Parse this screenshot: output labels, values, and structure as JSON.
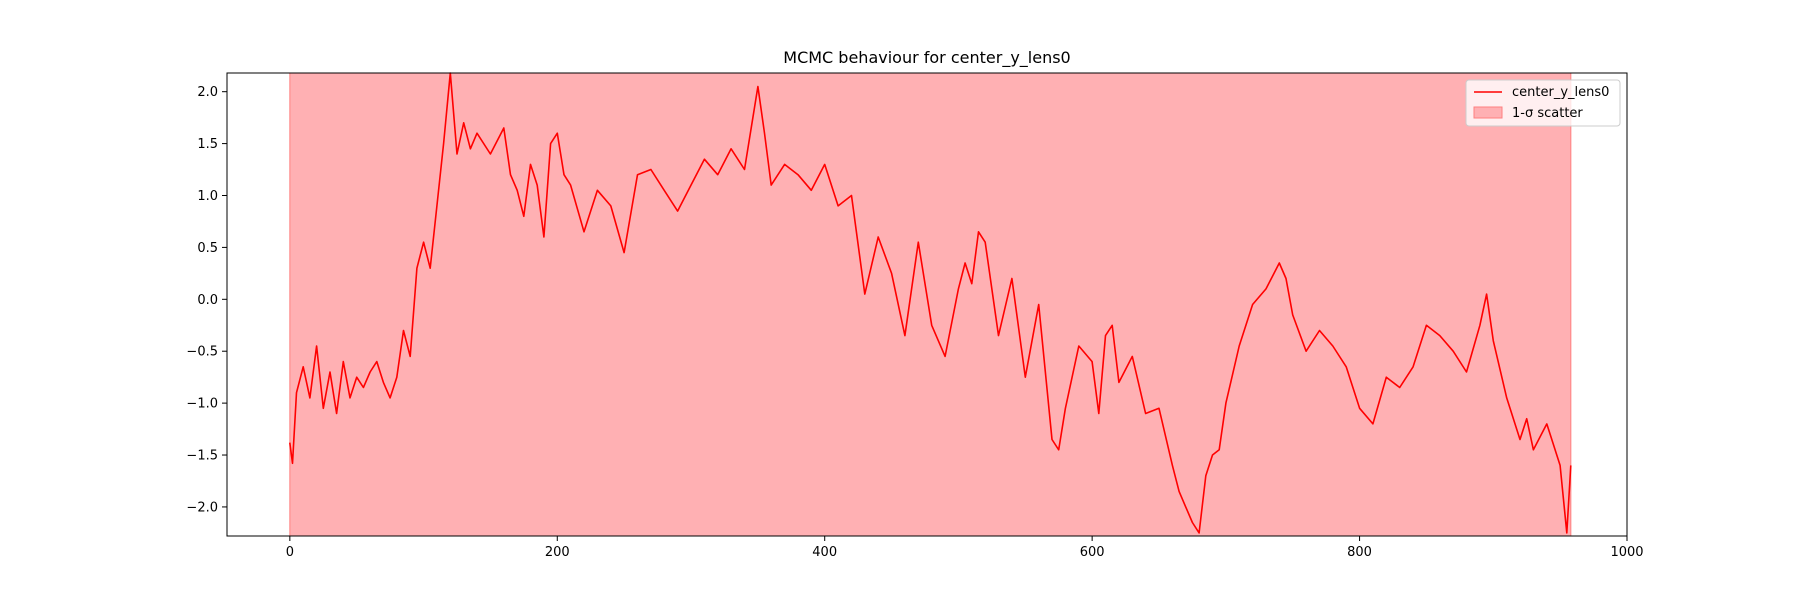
{
  "chart_data": {
    "type": "line",
    "title": "MCMC behaviour for center_y_lens0",
    "xlabel": "",
    "ylabel": "",
    "xlim": [
      -47,
      1000
    ],
    "ylim": [
      -2.28,
      2.18
    ],
    "x_ticks": [
      0,
      200,
      400,
      600,
      800,
      1000
    ],
    "y_ticks": [
      -2.0,
      -1.5,
      -1.0,
      -0.5,
      0.0,
      0.5,
      1.0,
      1.5,
      2.0
    ],
    "x_tick_labels": [
      "0",
      "200",
      "400",
      "600",
      "800",
      "1000"
    ],
    "y_tick_labels": [
      "−2.0",
      "−1.5",
      "−1.0",
      "−0.5",
      "0.0",
      "0.5",
      "1.0",
      "1.5",
      "2.0"
    ],
    "grid": false,
    "legend_position": "top-right",
    "colors": {
      "line": "#ff0000",
      "band_fill": "#ffb0b3",
      "band_edge": "#ff7f7f"
    },
    "series": [
      {
        "name": "center_y_lens0",
        "kind": "line",
        "x": [
          0,
          2,
          5,
          10,
          15,
          20,
          25,
          30,
          35,
          40,
          45,
          50,
          55,
          60,
          65,
          70,
          75,
          80,
          85,
          90,
          95,
          100,
          105,
          110,
          115,
          120,
          125,
          130,
          135,
          140,
          150,
          160,
          165,
          170,
          175,
          180,
          185,
          190,
          195,
          200,
          205,
          210,
          220,
          230,
          240,
          250,
          260,
          270,
          280,
          290,
          300,
          310,
          320,
          330,
          340,
          350,
          355,
          360,
          370,
          380,
          390,
          400,
          410,
          420,
          430,
          440,
          450,
          460,
          470,
          480,
          490,
          500,
          505,
          510,
          515,
          520,
          530,
          540,
          550,
          560,
          570,
          575,
          580,
          590,
          600,
          605,
          610,
          615,
          620,
          630,
          640,
          650,
          660,
          665,
          670,
          675,
          680,
          685,
          690,
          695,
          700,
          710,
          720,
          730,
          740,
          745,
          750,
          760,
          770,
          780,
          790,
          800,
          810,
          820,
          830,
          840,
          850,
          860,
          870,
          880,
          890,
          895,
          900,
          910,
          920,
          925,
          930,
          940,
          950,
          955,
          958
        ],
        "values": [
          -1.38,
          -1.58,
          -0.9,
          -0.65,
          -0.95,
          -0.45,
          -1.05,
          -0.7,
          -1.1,
          -0.6,
          -0.95,
          -0.75,
          -0.85,
          -0.7,
          -0.6,
          -0.8,
          -0.95,
          -0.75,
          -0.3,
          -0.55,
          0.3,
          0.55,
          0.3,
          0.9,
          1.5,
          2.18,
          1.4,
          1.7,
          1.45,
          1.6,
          1.4,
          1.65,
          1.2,
          1.05,
          0.8,
          1.3,
          1.1,
          0.6,
          1.5,
          1.6,
          1.2,
          1.1,
          0.65,
          1.05,
          0.9,
          0.45,
          1.2,
          1.25,
          1.05,
          0.85,
          1.1,
          1.35,
          1.2,
          1.45,
          1.25,
          2.05,
          1.6,
          1.1,
          1.3,
          1.2,
          1.05,
          1.3,
          0.9,
          1.0,
          0.05,
          0.6,
          0.25,
          -0.35,
          0.55,
          -0.25,
          -0.55,
          0.1,
          0.35,
          0.15,
          0.65,
          0.55,
          -0.35,
          0.2,
          -0.75,
          -0.05,
          -1.35,
          -1.45,
          -1.05,
          -0.45,
          -0.6,
          -1.1,
          -0.35,
          -0.25,
          -0.8,
          -0.55,
          -1.1,
          -1.05,
          -1.6,
          -1.85,
          -2.0,
          -2.15,
          -2.25,
          -1.7,
          -1.5,
          -1.45,
          -1.0,
          -0.45,
          -0.05,
          0.1,
          0.35,
          0.2,
          -0.15,
          -0.5,
          -0.3,
          -0.45,
          -0.65,
          -1.05,
          -1.2,
          -0.75,
          -0.85,
          -0.65,
          -0.25,
          -0.35,
          -0.5,
          -0.7,
          -0.25,
          0.05,
          -0.4,
          -0.95,
          -1.35,
          -1.15,
          -1.45,
          -1.2,
          -1.6,
          -2.25,
          -1.6
        ]
      },
      {
        "name": "1-σ scatter",
        "kind": "band",
        "x_range": [
          0,
          958
        ],
        "y_range": [
          -2.28,
          2.18
        ]
      }
    ]
  }
}
